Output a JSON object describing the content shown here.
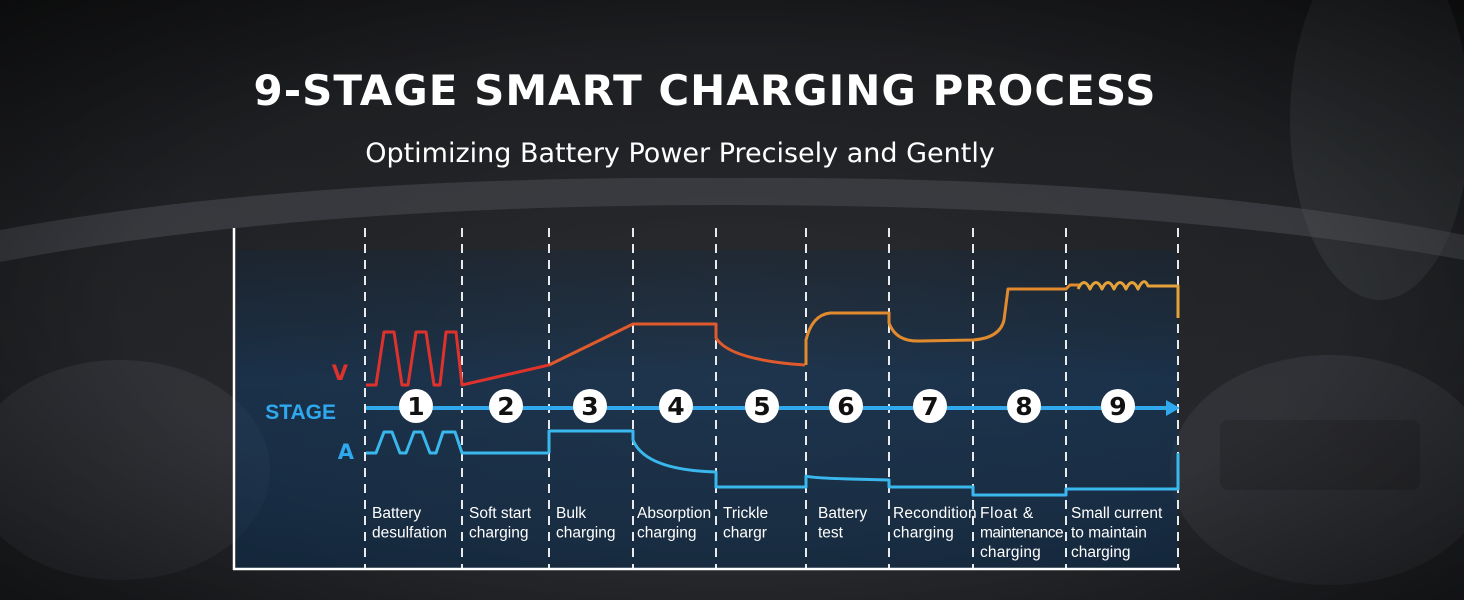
{
  "header": {
    "title": "9-STAGE SMART CHARGING PROCESS",
    "subtitle": "Optimizing Battery Power Precisely and Gently"
  },
  "legend": {
    "voltage": "V",
    "stage": "STAGE",
    "current": "A"
  },
  "colors": {
    "voltage": "#e0322c",
    "voltage_later": "#e28a2e",
    "stage_line": "#2fa8ee",
    "current": "#3ab8ee"
  },
  "stages": [
    {
      "number": "1",
      "label_lines": [
        "Battery",
        "desulfation"
      ]
    },
    {
      "number": "2",
      "label_lines": [
        "Soft start",
        "charging"
      ]
    },
    {
      "number": "3",
      "label_lines": [
        "Bulk",
        "charging"
      ]
    },
    {
      "number": "4",
      "label_lines": [
        "Absorption",
        "charging"
      ]
    },
    {
      "number": "5",
      "label_lines": [
        "Trickle",
        "chargr"
      ]
    },
    {
      "number": "6",
      "label_lines": [
        "Battery",
        "test"
      ]
    },
    {
      "number": "7",
      "label_lines": [
        "Recondition",
        "charging"
      ]
    },
    {
      "number": "8",
      "label_lines": [
        "Float &",
        "maintenance",
        "charging"
      ]
    },
    {
      "number": "9",
      "label_lines": [
        "Small current",
        "to maintain",
        "charging"
      ]
    }
  ]
}
